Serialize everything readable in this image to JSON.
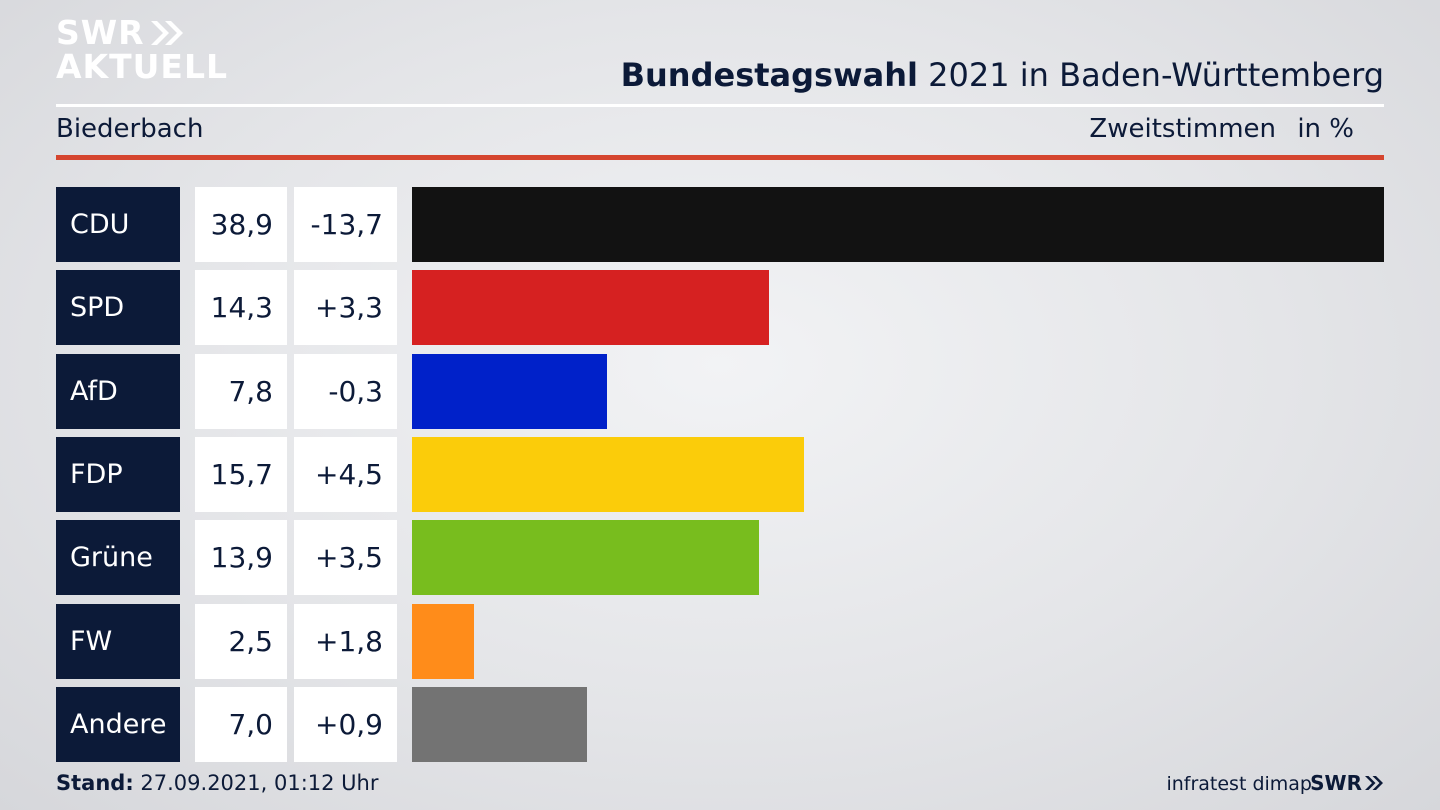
{
  "logo": {
    "line1": "SWR",
    "line2": "AKTUELL"
  },
  "header": {
    "title_bold": "Bundestagswahl",
    "title_rest": " 2021 in Baden-Württemberg",
    "region": "Biederbach",
    "measure": "Zweitstimmen",
    "unit": "in %"
  },
  "chart_data": {
    "type": "bar",
    "orientation": "horizontal",
    "title": "Bundestagswahl 2021 in Baden-Württemberg",
    "subtitle": "Biederbach — Zweitstimmen in %",
    "categories": [
      "CDU",
      "SPD",
      "AfD",
      "FDP",
      "Grüne",
      "FW",
      "Andere"
    ],
    "values": [
      38.9,
      14.3,
      7.8,
      15.7,
      13.9,
      2.5,
      7.0
    ],
    "value_labels": [
      "38,9",
      "14,3",
      "7,8",
      "15,7",
      "13,9",
      "2,5",
      "7,0"
    ],
    "changes": [
      "-13,7",
      "+3,3",
      "-0,3",
      "+4,5",
      "+3,5",
      "+1,8",
      "+0,9"
    ],
    "colors": [
      "#121212",
      "#d62121",
      "#0021c9",
      "#fbcc0a",
      "#78bd1e",
      "#ff8c1a",
      "#737373"
    ],
    "xlim": [
      0,
      38.9
    ]
  },
  "footer": {
    "stand_label": "Stand:",
    "stand_value": " 27.09.2021, 01:12 Uhr",
    "source": "infratest dimap",
    "brand": "SWR"
  }
}
